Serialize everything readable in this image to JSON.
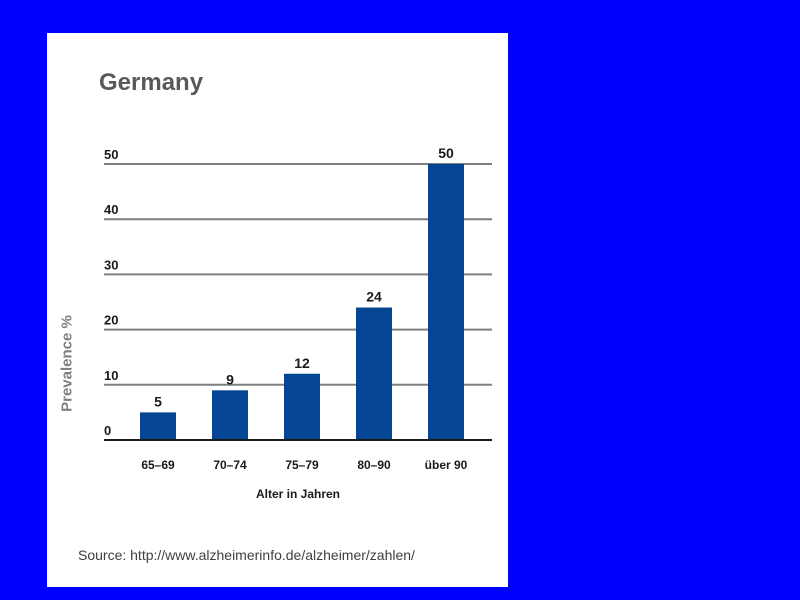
{
  "chart_data": {
    "type": "bar",
    "title": "Germany",
    "ylabel": "Prevalence %",
    "xlabel": "Alter in Jahren",
    "categories": [
      "65–69",
      "70–74",
      "75–79",
      "80–90",
      "über 90"
    ],
    "values": [
      5,
      9,
      12,
      24,
      50
    ],
    "yticks": [
      0,
      10,
      20,
      30,
      40,
      50
    ],
    "ylim": [
      0,
      50
    ],
    "grid": true,
    "bar_color": "#044594"
  },
  "footer": {
    "source": "Source: http://www.alzheimerinfo.de/alzheimer/zahlen/"
  },
  "colors": {
    "background": "#0000ff",
    "card": "#ffffff"
  }
}
